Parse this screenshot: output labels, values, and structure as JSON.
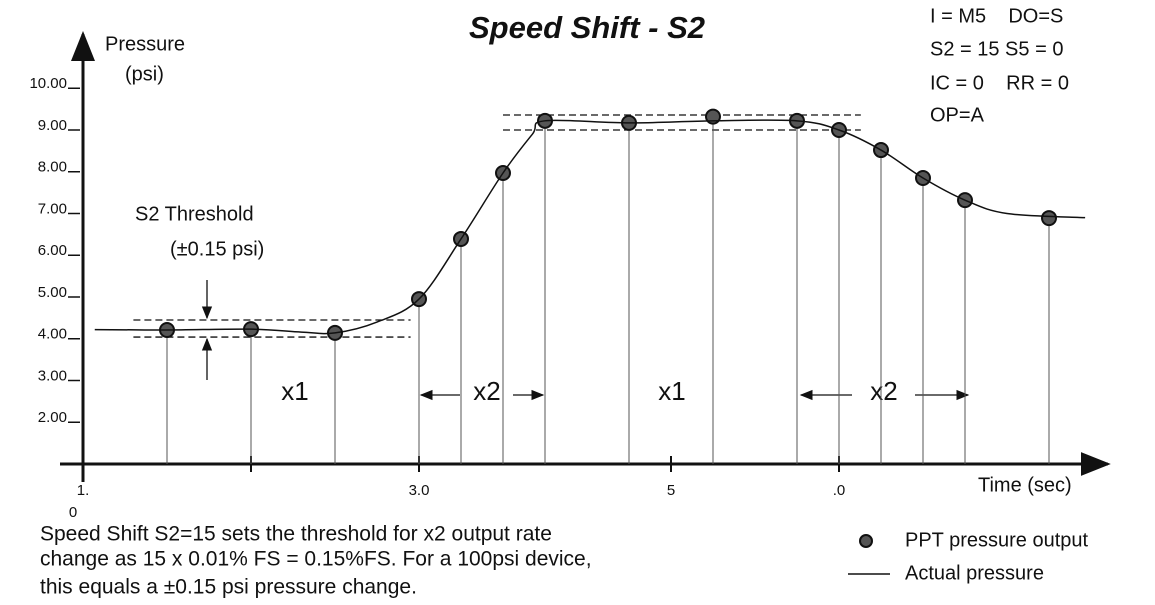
{
  "chart_data": {
    "type": "scatter",
    "title": "Speed Shift - S2",
    "y_label": [
      "Pressure",
      "(psi)"
    ],
    "x_label": "Time (sec)",
    "info": [
      "I = M5    DO=S",
      "S2 = 15 S5 = 0",
      "IC = 0    RR = 0",
      "OP=A"
    ],
    "annotations": {
      "threshold": [
        "S2 Threshold",
        "(±0.15 psi)"
      ],
      "segments": [
        "x1",
        "x2",
        "x1",
        "x2"
      ]
    },
    "note": [
      "Speed Shift S2=15 sets the threshold for x2 output rate",
      "change as 15 x 0.01% FS = 0.15%FS.  For a 100psi device,",
      "this equals a ±0.15 psi pressure change."
    ],
    "xlim": [
      0,
      12.2
    ],
    "ylim": [
      1,
      11.3
    ],
    "xticks": [
      {
        "value": 0,
        "label": "1.\n0"
      },
      {
        "value": 2,
        "label": null
      },
      {
        "value": 4,
        "label": "3.0"
      },
      {
        "value": 7,
        "label": "5"
      },
      {
        "value": 9,
        "label": ".0"
      }
    ],
    "yticks": [
      {
        "value": 2,
        "label": "2.00"
      },
      {
        "value": 3,
        "label": "3.00"
      },
      {
        "value": 4,
        "label": "4.00"
      },
      {
        "value": 5,
        "label": "5.00"
      },
      {
        "value": 6,
        "label": "6.00"
      },
      {
        "value": 7,
        "label": "7.00"
      },
      {
        "value": 8,
        "label": "8.00"
      },
      {
        "value": 9,
        "label": "9.00"
      },
      {
        "value": 10,
        "label": "10.00"
      }
    ],
    "grid": false,
    "series": [
      {
        "name": "PPT pressure output",
        "color": "#555555",
        "x": [
          1,
          2,
          3,
          4,
          4.5,
          5,
          5.5,
          6.5,
          7.5,
          8.5,
          9,
          9.5,
          10,
          10.5,
          11.5
        ],
        "values": [
          4.21,
          4.23,
          4.14,
          4.95,
          6.39,
          7.97,
          9.22,
          9.17,
          9.32,
          9.22,
          9.0,
          8.52,
          7.85,
          7.32,
          6.89
        ]
      },
      {
        "name": "Actual pressure",
        "color": "#111111",
        "line": true,
        "x": [
          0.14,
          1,
          2,
          2.6,
          3,
          3.5,
          4,
          4.5,
          5,
          5.35,
          5.5,
          6.5,
          7.5,
          8.5,
          9,
          9.5,
          10,
          10.5,
          11,
          11.93
        ],
        "values": [
          4.22,
          4.21,
          4.23,
          4.16,
          4.14,
          4.4,
          4.95,
          6.39,
          7.97,
          8.9,
          9.22,
          9.17,
          9.22,
          9.22,
          9.0,
          8.52,
          7.85,
          7.32,
          7.0,
          6.9
        ]
      }
    ],
    "threshold_bands": [
      {
        "x": [
          0.6,
          3.9
        ],
        "values": [
          4.45,
          4.04
        ]
      },
      {
        "x": [
          5.0,
          9.26
        ],
        "values": [
          9.36,
          9.0
        ]
      }
    ]
  }
}
